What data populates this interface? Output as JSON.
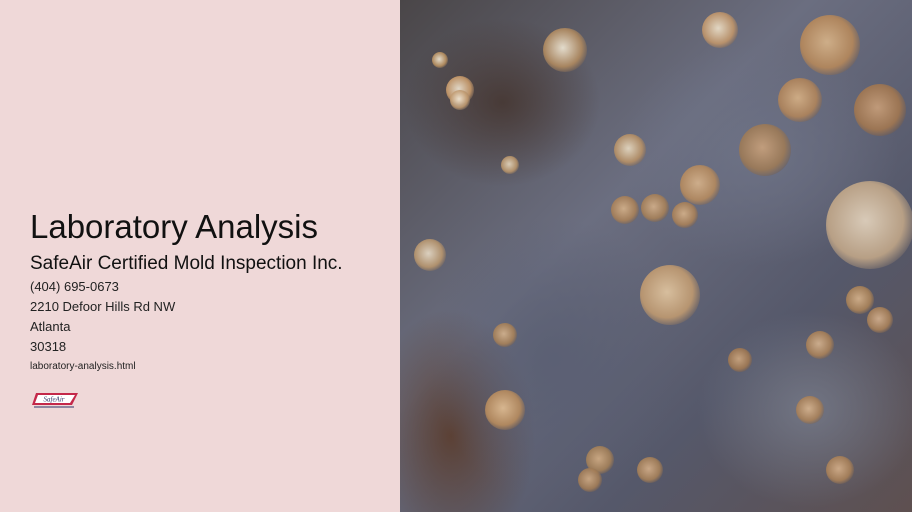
{
  "page": {
    "title": "Laboratory Analysis",
    "company": "SafeAir Certified Mold Inspection Inc.",
    "phone": "(404) 695-0673",
    "street": "2210 Defoor Hills Rd NW",
    "city": "Atlanta",
    "zip": "30318",
    "link": "laboratory-analysis.html",
    "logo_text": "SafeAir"
  },
  "colors": {
    "panel_bg": "#efd8d8",
    "logo_red": "#c4284a",
    "logo_navy": "#2c3468"
  },
  "photo": {
    "subject": "mold colonies on surface"
  }
}
